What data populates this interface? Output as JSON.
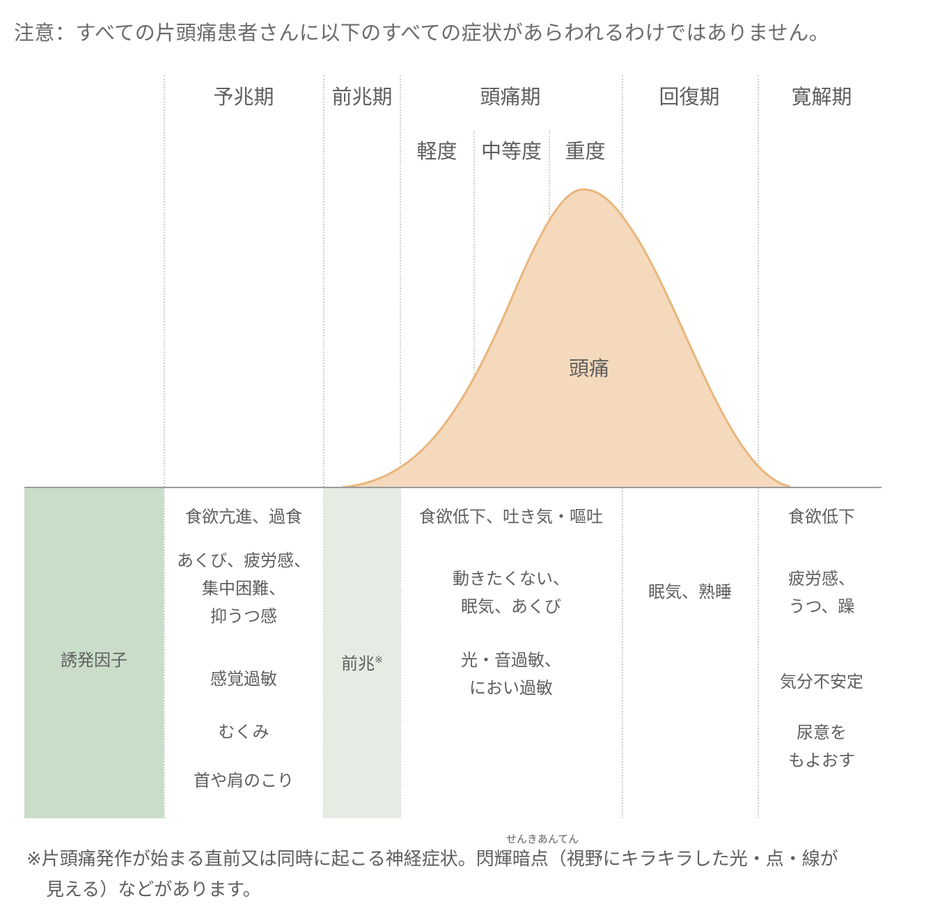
{
  "notice": "注意：すべての片頭痛患者さんに以下のすべての症状があらわれるわけではありません。",
  "phases": {
    "prodrome": "予兆期",
    "aura": "前兆期",
    "headache": "頭痛期",
    "recovery": "回復期",
    "remission": "寛解期"
  },
  "severity": {
    "mild": "軽度",
    "moderate": "中等度",
    "severe": "重度"
  },
  "curve_label": "頭痛",
  "trigger_label": "誘発因子",
  "aura_label": "前兆",
  "aura_mark": "※",
  "symptoms": {
    "prodrome": [
      "食欲亢進、過食",
      "あくび、疲労感、\n集中困難、\n抑うつ感",
      "感覚過敏",
      "むくみ",
      "首や肩のこり"
    ],
    "headache": [
      "食欲低下、吐き気・嘔吐",
      "動きたくない、\n眠気、あくび",
      "光・音過敏、\nにおい過敏"
    ],
    "recovery": [
      "眠気、熟睡"
    ],
    "remission": [
      "食欲低下",
      "疲労感、\nうつ、躁",
      "気分不安定",
      "尿意を\nもよおす"
    ]
  },
  "footnote": {
    "line1": "※片頭痛発作が始まる直前又は同時に起こる神経症状。閃輝暗点（視野にキラキラした光・点・線が",
    "line2": "見える）などがあります。",
    "ruby": "せんきあんてん"
  },
  "colors": {
    "curve_fill": "#f5d9bc",
    "curve_stroke": "#e8b57c",
    "trigger_bg": "#c9ddc9",
    "aura_bg": "#e6ece4"
  }
}
